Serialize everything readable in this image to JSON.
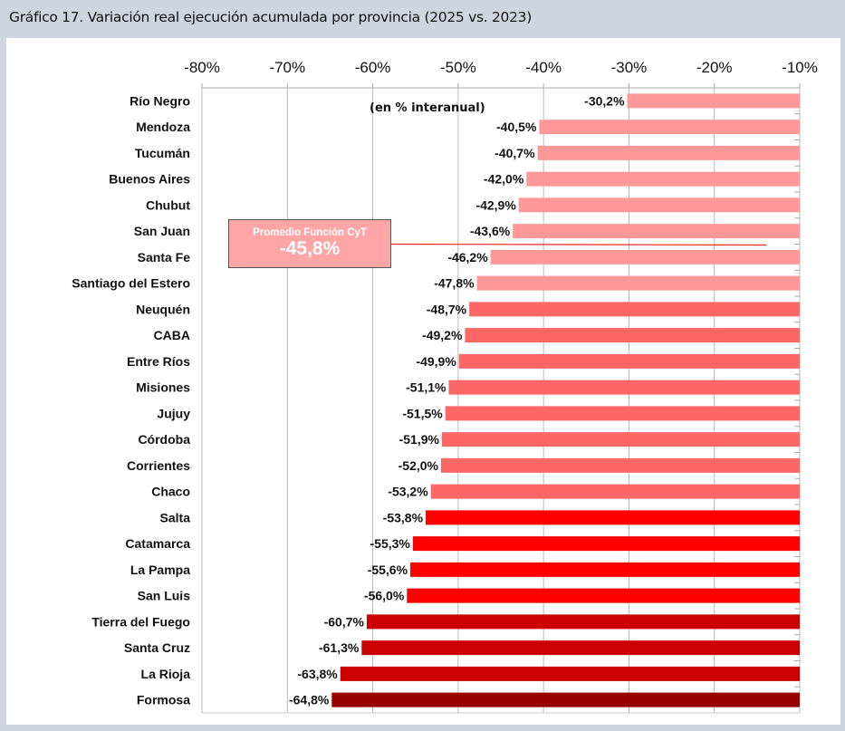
{
  "header": {
    "title": "Gráfico 17. Variación real ejecución acumulada por provincia (2025 vs. 2023)"
  },
  "chart_data": {
    "type": "bar",
    "orientation": "horizontal",
    "title": "Gráfico 17. Variación real ejecución acumulada por provincia (2025 vs. 2023)",
    "subtitle": "(en % interanual)",
    "xlabel": "",
    "ylabel": "",
    "xlim": [
      -80,
      -10
    ],
    "xticks": [
      -80,
      -70,
      -60,
      -50,
      -40,
      -30,
      -20,
      -10
    ],
    "xtick_labels": [
      "-80%",
      "-70%",
      "-60%",
      "-50%",
      "-40%",
      "-30%",
      "-20%",
      "-10%"
    ],
    "axis_position": "top",
    "grid": true,
    "categories": [
      "Río Negro",
      "Mendoza",
      "Tucumán",
      "Buenos Aires",
      "Chubut",
      "San Juan",
      "Santa Fe",
      "Santiago del Estero",
      "Neuquén",
      "CABA",
      "Entre Ríos",
      "Misiones",
      "Jujuy",
      "Córdoba",
      "Corrientes",
      "Chaco",
      "Salta",
      "Catamarca",
      "La Pampa",
      "San Luis",
      "Tierra del Fuego",
      "Santa Cruz",
      "La Rioja",
      "Formosa"
    ],
    "values": [
      -30.2,
      -40.5,
      -40.7,
      -42.0,
      -42.9,
      -43.6,
      -46.2,
      -47.8,
      -48.7,
      -49.2,
      -49.9,
      -51.1,
      -51.5,
      -51.9,
      -52.0,
      -53.2,
      -53.8,
      -55.3,
      -55.6,
      -56.0,
      -60.7,
      -61.3,
      -63.8,
      -64.8
    ],
    "value_labels": [
      "-30,2%",
      "-40,5%",
      "-40,7%",
      "-42,0%",
      "-42,9%",
      "-43,6%",
      "-46,2%",
      "-47,8%",
      "-48,7%",
      "-49,2%",
      "-49,9%",
      "-51,1%",
      "-51,5%",
      "-51,9%",
      "-52,0%",
      "-53,2%",
      "-53,8%",
      "-55,3%",
      "-55,6%",
      "-56,0%",
      "-60,7%",
      "-61,3%",
      "-63,8%",
      "-64,8%"
    ],
    "color_groups": [
      {
        "range": [
          0,
          7
        ],
        "color": "#ff9999"
      },
      {
        "range": [
          8,
          15
        ],
        "color": "#ff6666"
      },
      {
        "range": [
          16,
          19
        ],
        "color": "#ff0000"
      },
      {
        "range": [
          20,
          22
        ],
        "color": "#cc0000"
      },
      {
        "range": [
          23,
          23
        ],
        "color": "#990000"
      }
    ],
    "reference_line": {
      "label": "Promedio Función CyT",
      "value": -45.8,
      "value_label": "-45,8%",
      "color": "#ee2222",
      "box_color": "#ffa5a5"
    }
  }
}
